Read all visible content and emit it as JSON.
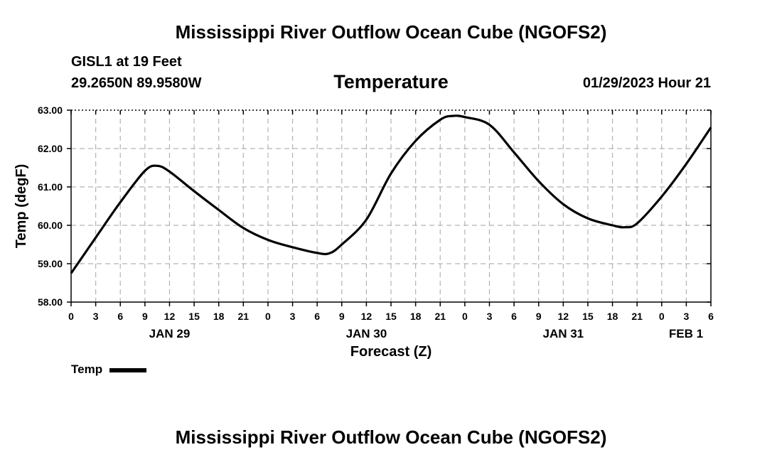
{
  "header": {
    "title": "Mississippi River Outflow Ocean Cube (NGOFS2)",
    "station": "GISL1 at 19 Feet",
    "coords": "29.2650N  89.9580W",
    "datetime": "01/29/2023 Hour 21",
    "footer_title": "Mississippi River Outflow Ocean Cube (NGOFS2)"
  },
  "chart_data": {
    "type": "line",
    "title": "Temperature",
    "xlabel": "Forecast (Z)",
    "ylabel": "Temp (degF)",
    "xlim": [
      0,
      78
    ],
    "ylim": [
      58,
      63
    ],
    "x_units": "hours from 00Z Jan 29",
    "grid": true,
    "ytick_labels": [
      "58.00",
      "59.00",
      "60.00",
      "61.00",
      "62.00",
      "63.00"
    ],
    "ytick_values": [
      58,
      59,
      60,
      61,
      62,
      63
    ],
    "xtick_labels": [
      "0",
      "3",
      "6",
      "9",
      "12",
      "15",
      "18",
      "21",
      "0",
      "3",
      "6",
      "9",
      "12",
      "15",
      "18",
      "21",
      "0",
      "3",
      "6",
      "9",
      "12",
      "15",
      "18",
      "21",
      "0",
      "3",
      "6"
    ],
    "date_labels": [
      {
        "label": "JAN 29",
        "hour": 12
      },
      {
        "label": "JAN 30",
        "hour": 36
      },
      {
        "label": "JAN 31",
        "hour": 60
      },
      {
        "label": "FEB 1",
        "hour": 78
      }
    ],
    "legend": [
      {
        "name": "Temp",
        "color": "#000000",
        "position": "bottom-left"
      }
    ],
    "series": [
      {
        "name": "Temp",
        "color": "#000000",
        "x": [
          0,
          3,
          6,
          9,
          10.5,
          12,
          15,
          18,
          21,
          24,
          27,
          30,
          31.5,
          33,
          36,
          39,
          42,
          45,
          46.5,
          48,
          51,
          54,
          57,
          60,
          63,
          66,
          67.5,
          69,
          72,
          75,
          78
        ],
        "y": [
          58.75,
          59.68,
          60.6,
          61.42,
          61.55,
          61.4,
          60.89,
          60.4,
          59.93,
          59.62,
          59.43,
          59.28,
          59.27,
          59.5,
          60.15,
          61.35,
          62.2,
          62.75,
          62.85,
          62.82,
          62.62,
          61.9,
          61.15,
          60.55,
          60.18,
          60.0,
          59.95,
          60.05,
          60.75,
          61.6,
          62.55
        ]
      }
    ]
  }
}
